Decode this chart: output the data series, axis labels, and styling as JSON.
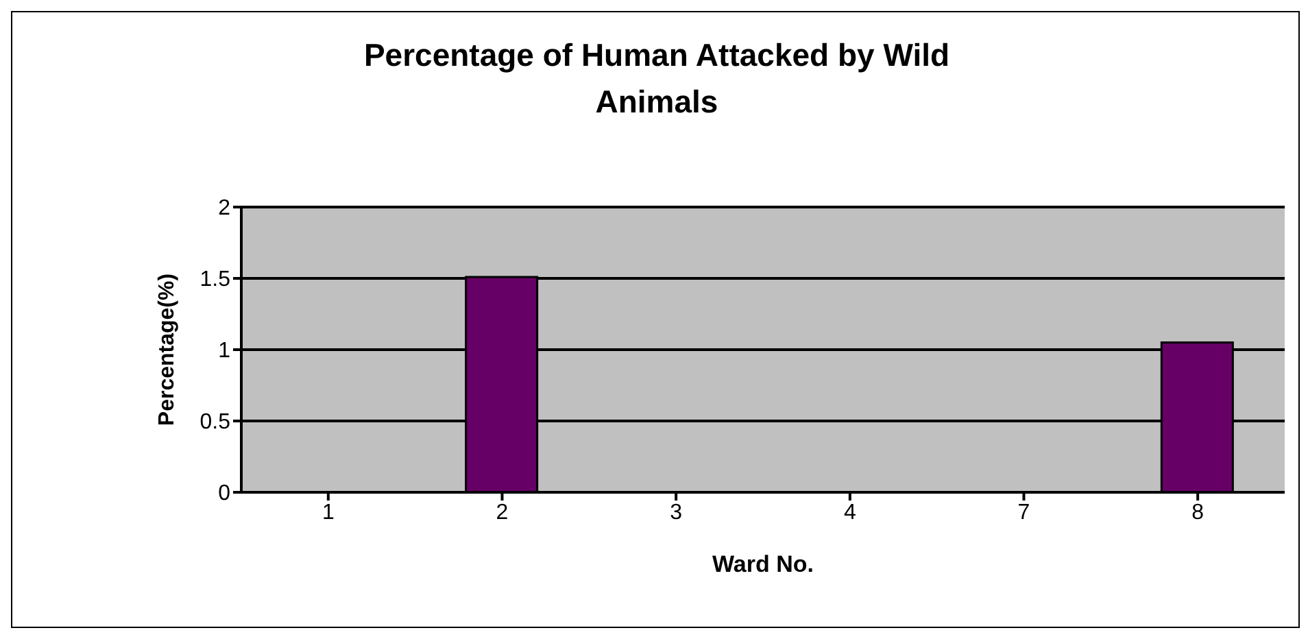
{
  "chart_data": {
    "type": "bar",
    "title": "Percentage of Human Attacked by Wild Animals",
    "xlabel": "Ward No.",
    "ylabel": "Percentage(%)",
    "categories": [
      "1",
      "2",
      "3",
      "4",
      "7",
      "8"
    ],
    "values": [
      0,
      1.51,
      0,
      0,
      0,
      1.05
    ],
    "color": "#660066",
    "ylim": [
      0,
      2
    ],
    "yticks": [
      0,
      0.5,
      1,
      1.5,
      2
    ],
    "grid": "y",
    "legend": false
  }
}
